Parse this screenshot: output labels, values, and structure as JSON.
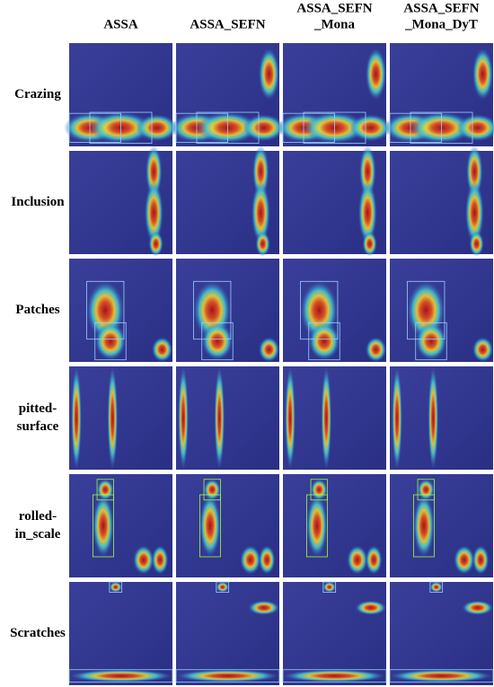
{
  "headers": [
    [
      "ASSA"
    ],
    [
      "ASSA_SEFN"
    ],
    [
      "ASSA_SEFN",
      "_Mona"
    ],
    [
      "ASSA_SEFN",
      "_Mona_DyT"
    ]
  ],
  "rows": [
    [
      "Crazing"
    ],
    [
      "Inclusion"
    ],
    [
      "Patches"
    ],
    [
      "pitted-",
      "surface"
    ],
    [
      "rolled-",
      "in_scale"
    ],
    [
      "Scratches"
    ]
  ]
}
